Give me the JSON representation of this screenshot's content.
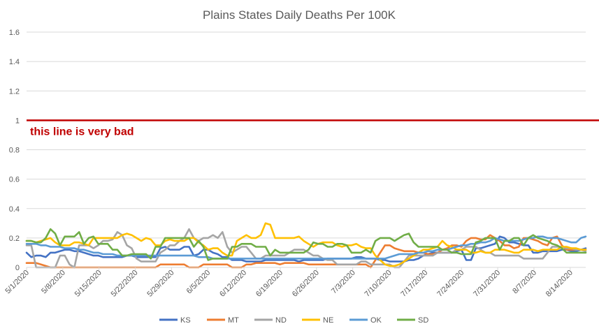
{
  "chart_data": {
    "type": "line",
    "title": "Plains States Daily Deaths Per 100K",
    "xlabel": "",
    "ylabel": "",
    "ylim": [
      0,
      1.6
    ],
    "yticks": [
      "0",
      "0.2",
      "0.4",
      "0.6",
      "0.8",
      "1",
      "1.2",
      "1.4",
      "1.6"
    ],
    "grid": true,
    "legend": "bottom",
    "x_tick_labels": [
      "5/1/2020",
      "5/8/2020",
      "5/15/2020",
      "5/22/2020",
      "5/29/2020",
      "6/5/2020",
      "6/12/2020",
      "6/19/2020",
      "6/26/2020",
      "7/3/2020",
      "7/10/2020",
      "7/17/2020",
      "7/24/2020",
      "7/31/2020",
      "8/7/2020",
      "8/14/2020"
    ],
    "x_start": "5/1/2020",
    "x_end": "8/17/2020",
    "reference_line": {
      "value": 1,
      "label": "this line is very bad",
      "color": "#c00000"
    },
    "series": [
      {
        "name": "KS",
        "color": "#4472c4",
        "values": [
          0.1,
          0.07,
          0.08,
          0.08,
          0.07,
          0.1,
          0.1,
          0.11,
          0.12,
          0.12,
          0.11,
          0.11,
          0.1,
          0.09,
          0.08,
          0.08,
          0.07,
          0.07,
          0.07,
          0.07,
          0.07,
          0.08,
          0.08,
          0.07,
          0.07,
          0.07,
          0.07,
          0.07,
          0.13,
          0.14,
          0.12,
          0.12,
          0.12,
          0.14,
          0.14,
          0.08,
          0.09,
          0.12,
          0.12,
          0.1,
          0.09,
          0.07,
          0.07,
          0.05,
          0.05,
          0.05,
          0.04,
          0.04,
          0.04,
          0.04,
          0.05,
          0.05,
          0.05,
          0.05,
          0.05,
          0.05,
          0.05,
          0.04,
          0.05,
          0.05,
          0.05,
          0.05,
          0.05,
          0.06,
          0.06,
          0.06,
          0.06,
          0.06,
          0.06,
          0.07,
          0.07,
          0.06,
          0.06,
          0.06,
          0.05,
          0.05,
          0.04,
          0.04,
          0.04,
          0.04,
          0.05,
          0.05,
          0.06,
          0.08,
          0.09,
          0.1,
          0.1,
          0.1,
          0.1,
          0.1,
          0.11,
          0.12,
          0.05,
          0.05,
          0.13,
          0.13,
          0.14,
          0.15,
          0.16,
          0.21,
          0.2,
          0.17,
          0.17,
          0.16,
          0.15,
          0.15,
          0.1,
          0.1,
          0.11,
          0.11,
          0.11,
          0.11,
          0.12,
          0.12,
          0.11,
          0.11,
          0.12,
          0.13
        ]
      },
      {
        "name": "MT",
        "color": "#ed7d31",
        "values": [
          0.03,
          0.03,
          0.03,
          0.02,
          0.01,
          0,
          0,
          0,
          0,
          0,
          0,
          0,
          0,
          0,
          0,
          0,
          0,
          0,
          0,
          0,
          0,
          0,
          0,
          0,
          0,
          0,
          0,
          0,
          0.02,
          0.02,
          0.02,
          0.02,
          0.02,
          0.02,
          0,
          0,
          0,
          0.02,
          0.02,
          0.02,
          0.02,
          0.02,
          0.02,
          0,
          0,
          0,
          0.02,
          0.02,
          0.03,
          0.03,
          0.03,
          0.03,
          0.03,
          0.02,
          0.03,
          0.03,
          0.03,
          0.03,
          0.03,
          0.02,
          0.02,
          0.02,
          0.02,
          0.02,
          0.02,
          0.02,
          0.02,
          0.02,
          0.02,
          0.02,
          0.02,
          0.02,
          0,
          0.05,
          0.1,
          0.15,
          0.15,
          0.13,
          0.12,
          0.11,
          0.11,
          0.11,
          0.1,
          0.1,
          0.09,
          0.09,
          0.1,
          0.12,
          0.13,
          0.15,
          0.15,
          0.14,
          0.18,
          0.2,
          0.2,
          0.19,
          0.19,
          0.22,
          0.2,
          0.18,
          0.15,
          0.15,
          0.13,
          0.14,
          0.2,
          0.2,
          0.19,
          0.18,
          0.16,
          0.15,
          0.2,
          0.21,
          0.15,
          0.12,
          0.12,
          0.12,
          0.12,
          0.12
        ]
      },
      {
        "name": "ND",
        "color": "#a5a5a5",
        "values": [
          0.15,
          0.15,
          0,
          0,
          0,
          0,
          0,
          0.08,
          0.08,
          0.02,
          0,
          0.15,
          0.15,
          0.15,
          0.13,
          0.15,
          0.18,
          0.18,
          0.19,
          0.24,
          0.22,
          0.15,
          0.13,
          0.06,
          0.04,
          0.04,
          0.04,
          0.04,
          0.1,
          0.12,
          0.15,
          0.15,
          0.18,
          0.2,
          0.26,
          0.2,
          0.18,
          0.2,
          0.2,
          0.22,
          0.2,
          0.24,
          0.14,
          0.1,
          0.12,
          0.14,
          0.14,
          0.1,
          0.06,
          0.06,
          0.08,
          0.08,
          0.08,
          0.08,
          0.08,
          0.1,
          0.12,
          0.12,
          0.12,
          0.1,
          0.08,
          0.08,
          0.06,
          0.05,
          0.05,
          0.02,
          0.02,
          0.02,
          0.02,
          0.02,
          0.04,
          0.04,
          0.02,
          0.02,
          0.02,
          0.02,
          0.02,
          0,
          0,
          0.04,
          0.08,
          0.08,
          0.08,
          0.08,
          0.08,
          0.08,
          0.1,
          0.1,
          0.1,
          0.1,
          0.12,
          0.12,
          0.14,
          0.14,
          0.14,
          0.12,
          0.1,
          0.1,
          0.08,
          0.08,
          0.08,
          0.08,
          0.08,
          0.08,
          0.06,
          0.06,
          0.06,
          0.06,
          0.06,
          0.1,
          0.14,
          0.14,
          0.14,
          0.13,
          0.13,
          0.12,
          0.12,
          0.11
        ]
      },
      {
        "name": "NE",
        "color": "#ffc000",
        "values": [
          0.18,
          0.18,
          0.17,
          0.18,
          0.19,
          0.2,
          0.17,
          0.15,
          0.15,
          0.15,
          0.17,
          0.17,
          0.16,
          0.15,
          0.2,
          0.2,
          0.2,
          0.2,
          0.2,
          0.2,
          0.22,
          0.23,
          0.22,
          0.2,
          0.18,
          0.2,
          0.19,
          0.15,
          0.15,
          0.18,
          0.19,
          0.18,
          0.18,
          0.18,
          0.2,
          0.2,
          0.17,
          0.15,
          0.12,
          0.13,
          0.13,
          0.1,
          0.08,
          0.08,
          0.18,
          0.2,
          0.22,
          0.2,
          0.2,
          0.22,
          0.3,
          0.29,
          0.2,
          0.2,
          0.2,
          0.2,
          0.2,
          0.21,
          0.18,
          0.16,
          0.14,
          0.16,
          0.17,
          0.17,
          0.17,
          0.15,
          0.14,
          0.15,
          0.15,
          0.16,
          0.14,
          0.13,
          0.13,
          0.08,
          0.05,
          0.02,
          0.01,
          0.01,
          0.02,
          0.04,
          0.06,
          0.08,
          0.1,
          0.12,
          0.12,
          0.13,
          0.14,
          0.18,
          0.15,
          0.14,
          0.12,
          0.12,
          0.12,
          0.1,
          0.1,
          0.11,
          0.1,
          0.1,
          0.12,
          0.12,
          0.12,
          0.11,
          0.1,
          0.1,
          0.12,
          0.12,
          0.12,
          0.11,
          0.12,
          0.12,
          0.12,
          0.12,
          0.14,
          0.14,
          0.13,
          0.13,
          0.12,
          0.12
        ]
      },
      {
        "name": "OK",
        "color": "#5b9bd5",
        "values": [
          0.16,
          0.16,
          0.16,
          0.15,
          0.15,
          0.14,
          0.14,
          0.14,
          0.13,
          0.13,
          0.13,
          0.12,
          0.12,
          0.11,
          0.1,
          0.1,
          0.09,
          0.09,
          0.09,
          0.08,
          0.08,
          0.08,
          0.08,
          0.08,
          0.08,
          0.08,
          0.08,
          0.08,
          0.08,
          0.08,
          0.08,
          0.08,
          0.08,
          0.08,
          0.08,
          0.08,
          0.07,
          0.07,
          0.07,
          0.06,
          0.06,
          0.06,
          0.06,
          0.06,
          0.06,
          0.06,
          0.06,
          0.06,
          0.06,
          0.06,
          0.06,
          0.06,
          0.06,
          0.06,
          0.06,
          0.06,
          0.06,
          0.06,
          0.06,
          0.06,
          0.06,
          0.06,
          0.06,
          0.06,
          0.06,
          0.06,
          0.06,
          0.06,
          0.06,
          0.06,
          0.06,
          0.06,
          0.06,
          0.06,
          0.06,
          0.06,
          0.07,
          0.08,
          0.09,
          0.09,
          0.09,
          0.09,
          0.1,
          0.1,
          0.11,
          0.11,
          0.12,
          0.12,
          0.12,
          0.13,
          0.14,
          0.15,
          0.15,
          0.16,
          0.16,
          0.17,
          0.17,
          0.18,
          0.2,
          0.19,
          0.18,
          0.18,
          0.18,
          0.18,
          0.19,
          0.2,
          0.2,
          0.21,
          0.21,
          0.2,
          0.2,
          0.2,
          0.19,
          0.18,
          0.17,
          0.17,
          0.2,
          0.21
        ]
      },
      {
        "name": "SD",
        "color": "#70ad47",
        "values": [
          0.18,
          0.18,
          0.17,
          0.17,
          0.2,
          0.26,
          0.23,
          0.15,
          0.21,
          0.21,
          0.21,
          0.24,
          0.16,
          0.2,
          0.21,
          0.16,
          0.16,
          0.16,
          0.12,
          0.12,
          0.08,
          0.08,
          0.09,
          0.09,
          0.09,
          0.09,
          0.06,
          0.14,
          0.14,
          0.2,
          0.2,
          0.2,
          0.2,
          0.2,
          0.2,
          0.14,
          0.18,
          0.14,
          0.05,
          0.06,
          0.06,
          0.06,
          0.06,
          0.14,
          0.14,
          0.16,
          0.16,
          0.16,
          0.14,
          0.14,
          0.14,
          0.08,
          0.12,
          0.1,
          0.1,
          0.1,
          0.1,
          0.1,
          0.1,
          0.12,
          0.17,
          0.16,
          0.16,
          0.14,
          0.14,
          0.16,
          0.16,
          0.15,
          0.1,
          0.1,
          0.1,
          0.12,
          0.1,
          0.18,
          0.2,
          0.2,
          0.2,
          0.18,
          0.2,
          0.22,
          0.23,
          0.17,
          0.14,
          0.14,
          0.14,
          0.14,
          0.14,
          0.12,
          0.12,
          0.1,
          0.1,
          0.09,
          0.09,
          0.09,
          0.17,
          0.18,
          0.2,
          0.2,
          0.2,
          0.12,
          0.18,
          0.18,
          0.2,
          0.2,
          0.15,
          0.2,
          0.22,
          0.2,
          0.19,
          0.18,
          0.16,
          0.15,
          0.13,
          0.1,
          0.1,
          0.1,
          0.1,
          0.1
        ]
      }
    ]
  }
}
